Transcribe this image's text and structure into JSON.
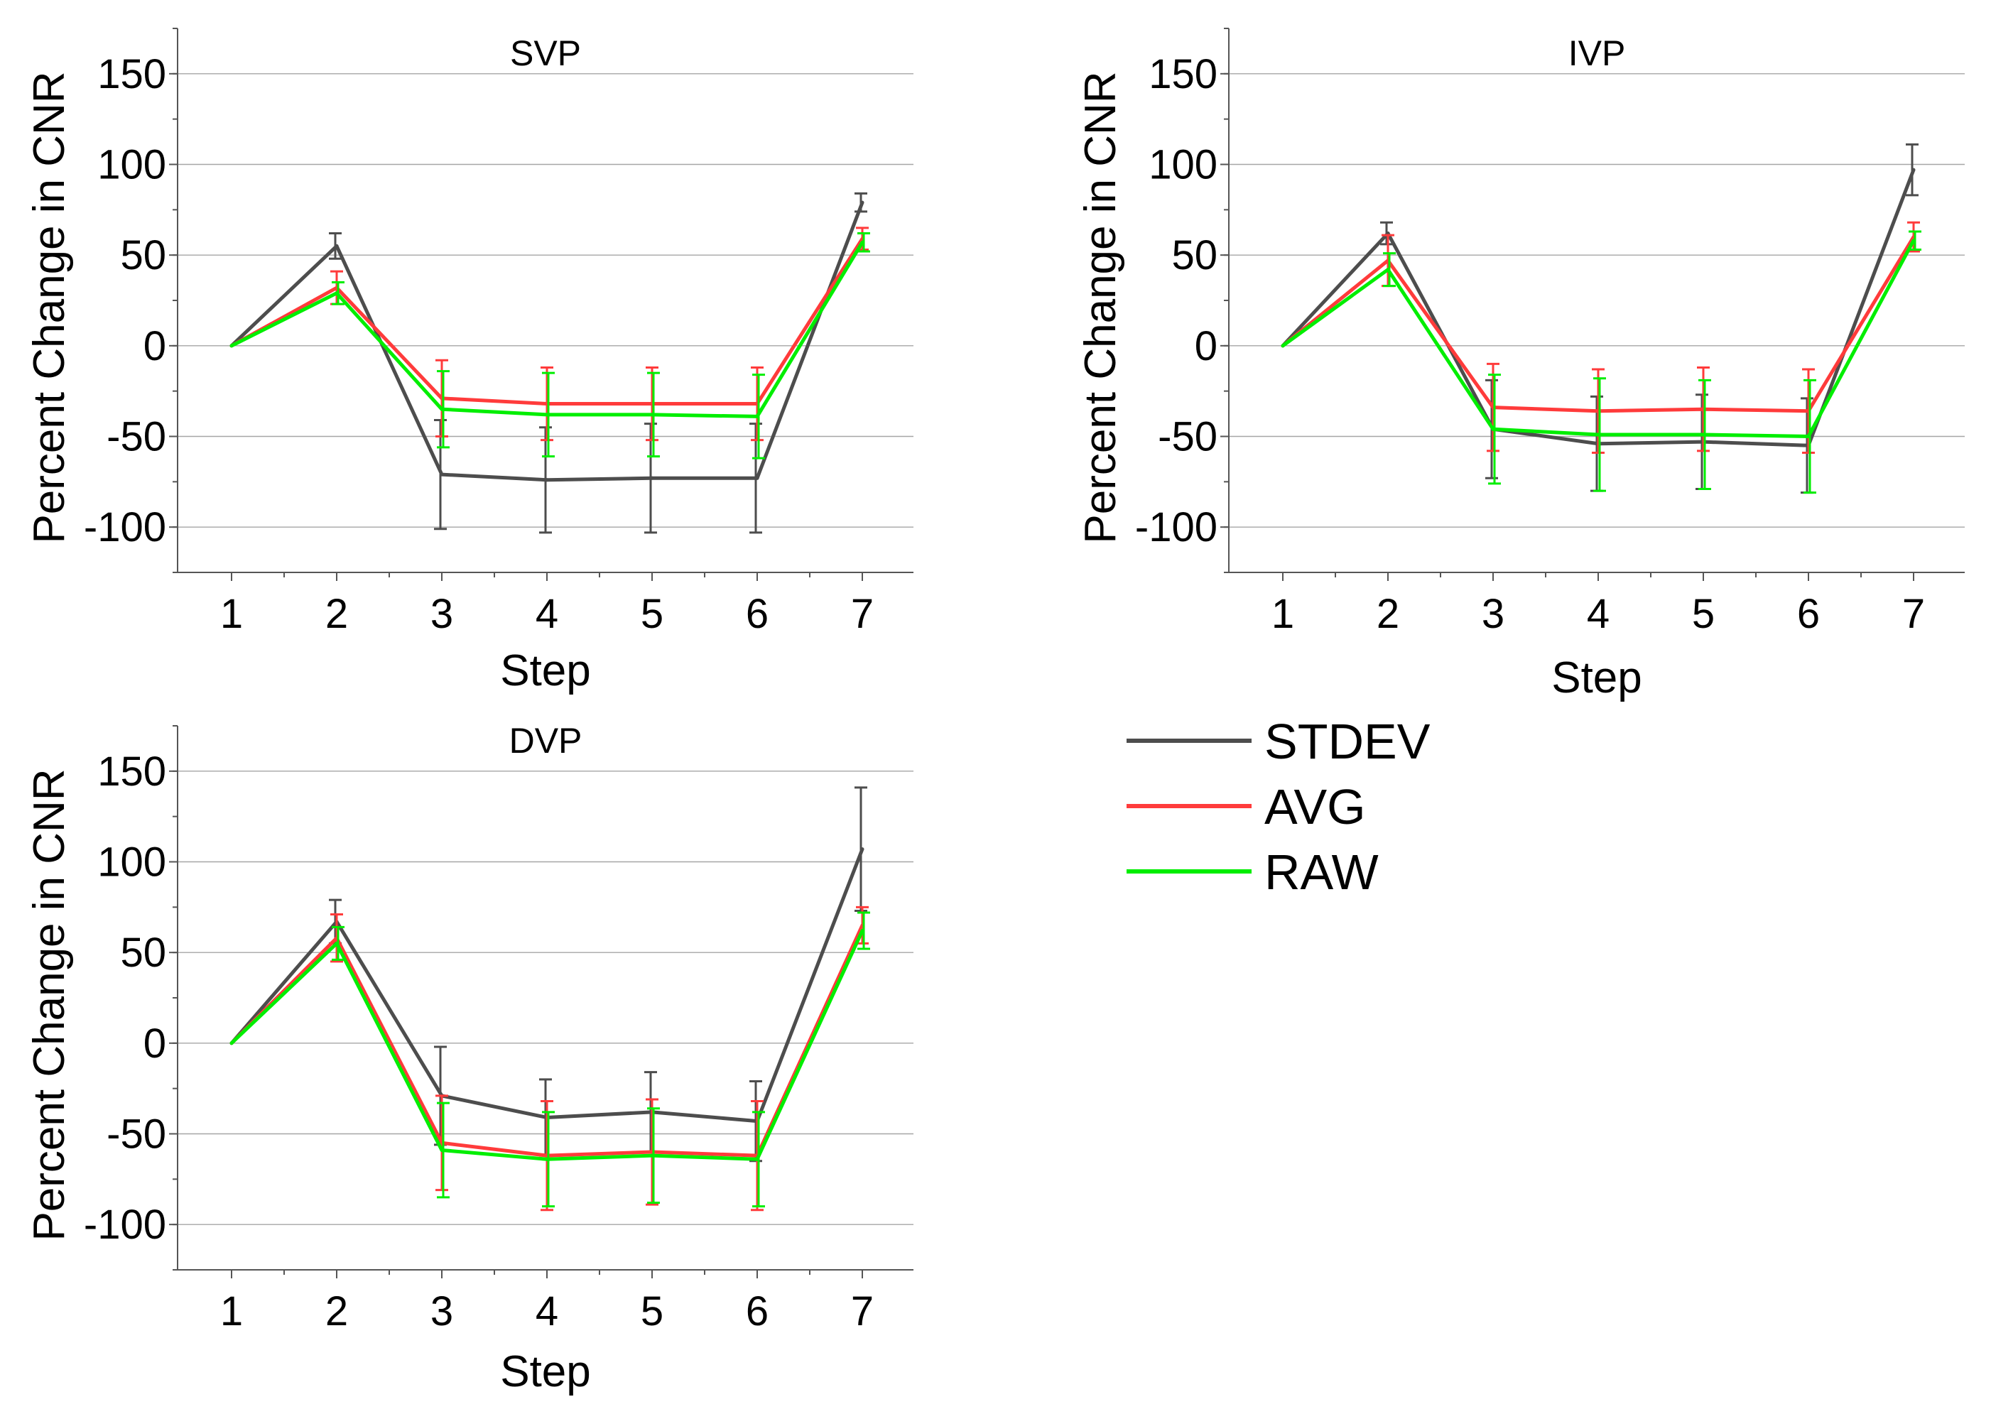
{
  "chart_data": [
    {
      "type": "line",
      "title": "SVP",
      "xlabel": "Step",
      "ylabel": "Percent Change in CNR",
      "categories": [
        "1",
        "2",
        "3",
        "4",
        "5",
        "6",
        "7"
      ],
      "ylim": [
        -125,
        175
      ],
      "yticks": [
        "-100",
        "-50",
        "0",
        "50",
        "100",
        "150"
      ],
      "series": [
        {
          "name": "STDEV",
          "color": "#4d4d4d",
          "values": [
            0,
            55,
            -71,
            -74,
            -73,
            -73,
            79
          ],
          "errors": [
            0,
            7,
            30,
            29,
            30,
            30,
            5
          ]
        },
        {
          "name": "AVG",
          "color": "#ff3b3b",
          "values": [
            0,
            32,
            -29,
            -32,
            -32,
            -32,
            59
          ],
          "errors": [
            0,
            9,
            21,
            20,
            20,
            20,
            6
          ]
        },
        {
          "name": "RAW",
          "color": "#00ee00",
          "values": [
            0,
            29,
            -35,
            -38,
            -38,
            -39,
            57
          ],
          "errors": [
            0,
            6,
            21,
            23,
            23,
            23,
            5
          ]
        }
      ]
    },
    {
      "type": "line",
      "title": "IVP",
      "xlabel": "Step",
      "ylabel": "Percent Change in CNR",
      "categories": [
        "1",
        "2",
        "3",
        "4",
        "5",
        "6",
        "7"
      ],
      "ylim": [
        -125,
        175
      ],
      "yticks": [
        "-100",
        "-50",
        "0",
        "50",
        "100",
        "150"
      ],
      "series": [
        {
          "name": "STDEV",
          "color": "#4d4d4d",
          "values": [
            0,
            62,
            -46,
            -54,
            -53,
            -55,
            97
          ],
          "errors": [
            0,
            6,
            27,
            26,
            26,
            26,
            14
          ]
        },
        {
          "name": "AVG",
          "color": "#ff3b3b",
          "values": [
            0,
            47,
            -34,
            -36,
            -35,
            -36,
            60
          ],
          "errors": [
            0,
            14,
            24,
            23,
            23,
            23,
            8
          ]
        },
        {
          "name": "RAW",
          "color": "#00ee00",
          "values": [
            0,
            42,
            -46,
            -49,
            -49,
            -50,
            58
          ],
          "errors": [
            0,
            9,
            30,
            31,
            30,
            31,
            5
          ]
        }
      ]
    },
    {
      "type": "line",
      "title": "DVP",
      "xlabel": "Step",
      "ylabel": "Percent Change in CNR",
      "categories": [
        "1",
        "2",
        "3",
        "4",
        "5",
        "6",
        "7"
      ],
      "ylim": [
        -125,
        175
      ],
      "yticks": [
        "-100",
        "-50",
        "0",
        "50",
        "100",
        "150"
      ],
      "series": [
        {
          "name": "STDEV",
          "color": "#4d4d4d",
          "values": [
            0,
            67,
            -29,
            -41,
            -38,
            -43,
            107
          ],
          "errors": [
            0,
            12,
            27,
            21,
            22,
            22,
            34
          ]
        },
        {
          "name": "AVG",
          "color": "#ff3b3b",
          "values": [
            0,
            58,
            -55,
            -62,
            -60,
            -62,
            65
          ],
          "errors": [
            0,
            13,
            26,
            30,
            29,
            30,
            10
          ]
        },
        {
          "name": "RAW",
          "color": "#00ee00",
          "values": [
            0,
            55,
            -59,
            -64,
            -62,
            -64,
            62
          ],
          "errors": [
            0,
            9,
            26,
            26,
            26,
            26,
            10
          ]
        }
      ]
    }
  ],
  "legend": {
    "items": [
      {
        "label": "STDEV",
        "color": "#4d4d4d"
      },
      {
        "label": "AVG",
        "color": "#ff3b3b"
      },
      {
        "label": "RAW",
        "color": "#00ee00"
      }
    ]
  }
}
